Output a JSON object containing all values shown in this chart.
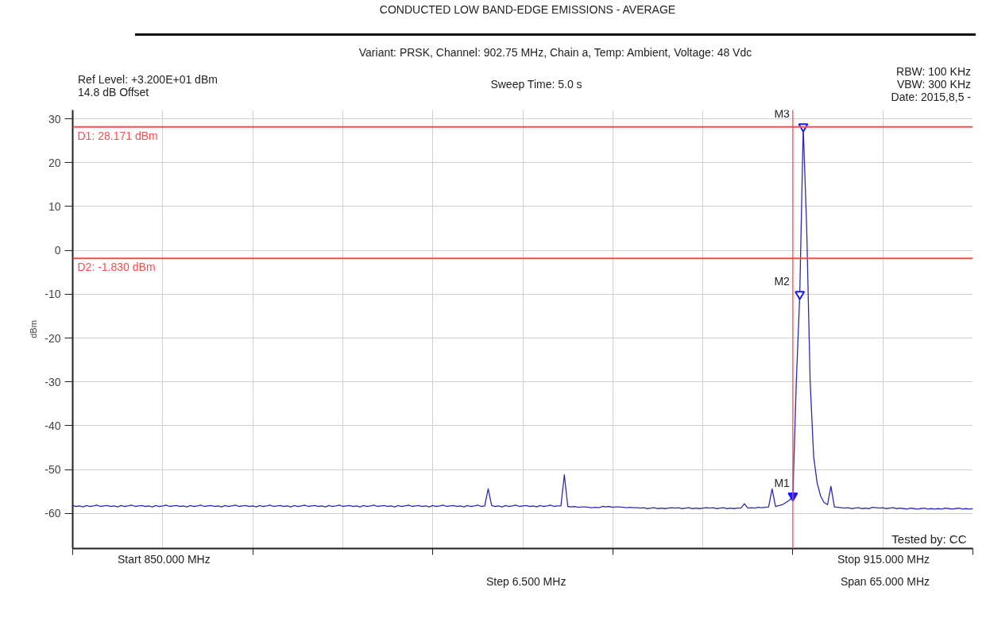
{
  "chart_data": {
    "type": "line",
    "title": "CONDUCTED LOW BAND-EDGE EMISSIONS - AVERAGE",
    "subtitle": "Variant: PRSK, Channel: 902.75 MHz, Chain a, Temp: Ambient, Voltage: 48 Vdc",
    "ylabel": "dBm",
    "categories": [
      null,
      null,
      null,
      null,
      null,
      null,
      null,
      null,
      null,
      null,
      null,
      null,
      null,
      null,
      null,
      null,
      null,
      null,
      null,
      null,
      null,
      null,
      null,
      null,
      null,
      null,
      null,
      null,
      null,
      null,
      null,
      null,
      null,
      null,
      null,
      null,
      null,
      null,
      null,
      null,
      null,
      null,
      null,
      null,
      null,
      null,
      null,
      null,
      null,
      null,
      null,
      null,
      null,
      null,
      null,
      null,
      null,
      null,
      null,
      null,
      null,
      null,
      null,
      null,
      null,
      null,
      null,
      null,
      null,
      null,
      null,
      null,
      null,
      null,
      null,
      null,
      null,
      null,
      null,
      null,
      null,
      null,
      null,
      null,
      null,
      null,
      null,
      null,
      null,
      null,
      null,
      null,
      null,
      null,
      null,
      null,
      null,
      null,
      null,
      null,
      null,
      null,
      null,
      null,
      null,
      null,
      null,
      null,
      null,
      null,
      null,
      null,
      null,
      null,
      null,
      null,
      null,
      null,
      null,
      null,
      null,
      null,
      null,
      null,
      null,
      null,
      null,
      null,
      null,
      null,
      null,
      null,
      null,
      null,
      null,
      null,
      null,
      null,
      null,
      null,
      null,
      null,
      null,
      null,
      null,
      null,
      null,
      null,
      null,
      null,
      null,
      null,
      null,
      null,
      null,
      null,
      null,
      null,
      null,
      null,
      null,
      null,
      null,
      null,
      null,
      null,
      null,
      null,
      null,
      null,
      null,
      null,
      null,
      null,
      null,
      null,
      null,
      null,
      null,
      null,
      null,
      null,
      null,
      null,
      null,
      null,
      null,
      null,
      null,
      null,
      null,
      null,
      null,
      null,
      null,
      null,
      null,
      null,
      null,
      null,
      null,
      null,
      null,
      null,
      null,
      null,
      null,
      null,
      null,
      null,
      null,
      null,
      null,
      null,
      null,
      null,
      null,
      null,
      null,
      null,
      null,
      null,
      null,
      null,
      null,
      null,
      null,
      null,
      null,
      null,
      null,
      null,
      null,
      null,
      null,
      null,
      null,
      null,
      null,
      null,
      null,
      null,
      null,
      null,
      null,
      null,
      null,
      null,
      null,
      null,
      null,
      null,
      null,
      null,
      null,
      null,
      null,
      null,
      null,
      null,
      null
    ],
    "series": [
      {
        "color": "#2b2bb0",
        "values": [
          -58.2,
          -58.4,
          -58.3,
          -58.5,
          -58.2,
          -58.4,
          -58.3,
          -58.1,
          -58.4,
          -58.3,
          -58.2,
          -58.4,
          -58.3,
          -58.5,
          -58.2,
          -58.4,
          -58.3,
          -58.1,
          -58.4,
          -58.3,
          -58.2,
          -58.4,
          -58.3,
          -58.5,
          -58.2,
          -58.4,
          -58.3,
          -58.1,
          -58.4,
          -58.3,
          -58.2,
          -58.4,
          -58.3,
          -58.5,
          -58.2,
          -58.4,
          -58.3,
          -58.1,
          -58.4,
          -58.3,
          -58.2,
          -58.4,
          -58.3,
          -58.5,
          -58.2,
          -58.4,
          -58.3,
          -58.1,
          -58.4,
          -58.3,
          -58.2,
          -58.4,
          -58.3,
          -58.5,
          -58.2,
          -58.4,
          -58.3,
          -58.1,
          -58.4,
          -58.3,
          -58.2,
          -58.4,
          -58.3,
          -58.5,
          -58.2,
          -58.4,
          -58.3,
          -58.1,
          -58.4,
          -58.3,
          -58.2,
          -58.4,
          -58.3,
          -58.5,
          -58.2,
          -58.4,
          -58.3,
          -58.1,
          -58.4,
          -58.3,
          -58.2,
          -58.4,
          -58.3,
          -58.5,
          -58.2,
          -58.4,
          -58.3,
          -58.1,
          -58.4,
          -58.3,
          -58.2,
          -58.4,
          -58.3,
          -58.5,
          -58.2,
          -58.4,
          -58.3,
          -58.1,
          -58.4,
          -58.3,
          -58.2,
          -58.4,
          -58.3,
          -58.5,
          -58.2,
          -58.4,
          -58.3,
          -58.1,
          -58.4,
          -58.3,
          -58.2,
          -58.4,
          -58.3,
          -58.5,
          -58.2,
          -58.4,
          -58.3,
          -58.1,
          -58.4,
          -58.3,
          -54.4,
          -58.2,
          -58.4,
          -58.3,
          -58.5,
          -58.2,
          -58.4,
          -58.3,
          -58.1,
          -58.4,
          -58.3,
          -58.2,
          -58.4,
          -58.3,
          -58.5,
          -58.2,
          -58.4,
          -58.3,
          -58.1,
          -58.4,
          -58.3,
          -58.3,
          -51.2,
          -58.4,
          -58.5,
          -58.4,
          -58.6,
          -58.5,
          -58.5,
          -58.6,
          -58.7,
          -58.6,
          -58.7,
          -58.4,
          -58.5,
          -58.4,
          -58.6,
          -58.5,
          -58.5,
          -58.6,
          -58.7,
          -58.6,
          -58.7,
          -58.7,
          -58.8,
          -58.7,
          -58.9,
          -58.8,
          -58.7,
          -58.9,
          -58.8,
          -58.9,
          -58.8,
          -58.7,
          -58.8,
          -58.7,
          -58.9,
          -58.8,
          -58.7,
          -58.9,
          -58.8,
          -58.9,
          -58.8,
          -58.7,
          -58.8,
          -58.7,
          -58.9,
          -58.8,
          -58.7,
          -58.9,
          -58.8,
          -58.9,
          -58.8,
          -58.8,
          -57.8,
          -58.8,
          -58.7,
          -58.8,
          -58.6,
          -58.7,
          -58.6,
          -58.5,
          -54.4,
          -58.4,
          -58.2,
          -58.0,
          -57.5,
          -57.0,
          -56.0,
          -30,
          -10,
          28.2,
          5,
          -30,
          -47,
          -53,
          -56,
          -57.5,
          -58.0,
          -53.8,
          -58.5,
          -58.6,
          -58.7,
          -58.8,
          -58.7,
          -58.9,
          -58.8,
          -58.7,
          -58.9,
          -58.8,
          -58.9,
          -58.6,
          -58.7,
          -58.8,
          -58.7,
          -58.9,
          -58.8,
          -58.7,
          -58.9,
          -58.8,
          -58.9,
          -59.0,
          -58.8,
          -58.9,
          -59.0,
          -58.9,
          -58.8,
          -59.0,
          -58.9,
          -59.0,
          -58.9,
          -59.0,
          -58.8,
          -58.9,
          -59.0,
          -58.9,
          -58.8,
          -59.0,
          -58.9,
          -59.0,
          -58.9
        ]
      },
      {
        "type": "scatter",
        "marker": "triangle",
        "color": "#1a1aff",
        "values": [
          null,
          null,
          null,
          null,
          null,
          null,
          null,
          null,
          null,
          null,
          null,
          null,
          null,
          null,
          null,
          null,
          null,
          null,
          null,
          null,
          null,
          null,
          null,
          null,
          null,
          null,
          null,
          null,
          null,
          null,
          null,
          null,
          null,
          null,
          null,
          null,
          null,
          null,
          null,
          null,
          null,
          null,
          null,
          null,
          null,
          null,
          null,
          null,
          null,
          null,
          null,
          null,
          null,
          null,
          null,
          null,
          null,
          null,
          null,
          null,
          null,
          null,
          null,
          null,
          null,
          null,
          null,
          null,
          null,
          null,
          null,
          null,
          null,
          null,
          null,
          null,
          null,
          null,
          null,
          null,
          null,
          null,
          null,
          null,
          null,
          null,
          null,
          null,
          null,
          null,
          null,
          null,
          null,
          null,
          null,
          null,
          null,
          null,
          null,
          null,
          null,
          null,
          null,
          null,
          null,
          null,
          null,
          null,
          null,
          null,
          null,
          null,
          null,
          null,
          null,
          null,
          null,
          null,
          null,
          null,
          null,
          null,
          null,
          null,
          null,
          null,
          null,
          null,
          null,
          null,
          null,
          null,
          null,
          null,
          null,
          null,
          null,
          null,
          null,
          null,
          null,
          null,
          null,
          null,
          null,
          null,
          null,
          null,
          null,
          null,
          null,
          null,
          null,
          null,
          null,
          null,
          null,
          null,
          null,
          null,
          null,
          null,
          null,
          null,
          null,
          null,
          null,
          null,
          null,
          null,
          null,
          null,
          null,
          null,
          null,
          null,
          null,
          null,
          null,
          null,
          null,
          null,
          null,
          null,
          null,
          null,
          null,
          null,
          null,
          null,
          null,
          null,
          null,
          null,
          null,
          null,
          null,
          null,
          null,
          null,
          null,
          null,
          null,
          null,
          null,
          null,
          null,
          null,
          -56.0,
          null,
          -10,
          28.2,
          null,
          null,
          null,
          null,
          null,
          null,
          null,
          null,
          null,
          null,
          null,
          null,
          null,
          null,
          null,
          null,
          null,
          null,
          null,
          null,
          null,
          null,
          null,
          null,
          null,
          null,
          null,
          null,
          null,
          null,
          null,
          null,
          null,
          null,
          null,
          null,
          null,
          null,
          null,
          null,
          null,
          null,
          null,
          null,
          null,
          null,
          null,
          null,
          null
        ]
      }
    ],
    "ylim": [
      -68,
      32
    ],
    "yticks": [
      -60,
      -50,
      -40,
      -30,
      -20,
      -10,
      0,
      10,
      20,
      30
    ],
    "tick_labels": "y",
    "grid": true,
    "line_style": "solid",
    "ref_lines": [
      {
        "axis": "y",
        "value": 28.171,
        "label": "D1: 28.171 dBm",
        "color": "#ff4d4d"
      },
      {
        "axis": "y",
        "value": -1.83,
        "label": "D2: -1.830 dBm",
        "color": "#ff4d4d"
      }
    ],
    "annotations": [
      "Ref Level: +3.200E+01 dBm",
      "14.8 dB Offset",
      "Sweep Time: 5.0 s",
      "RBW: 100 KHz",
      "VBW: 300 KHz",
      "Date: 2015,8,5 -",
      "Tested by: CC",
      "Start 850.000 MHz",
      "Stop 915.000 MHz",
      "Step 6.500 MHz",
      "Span 65.000 MHz",
      "M1",
      "M2",
      "M3"
    ]
  }
}
